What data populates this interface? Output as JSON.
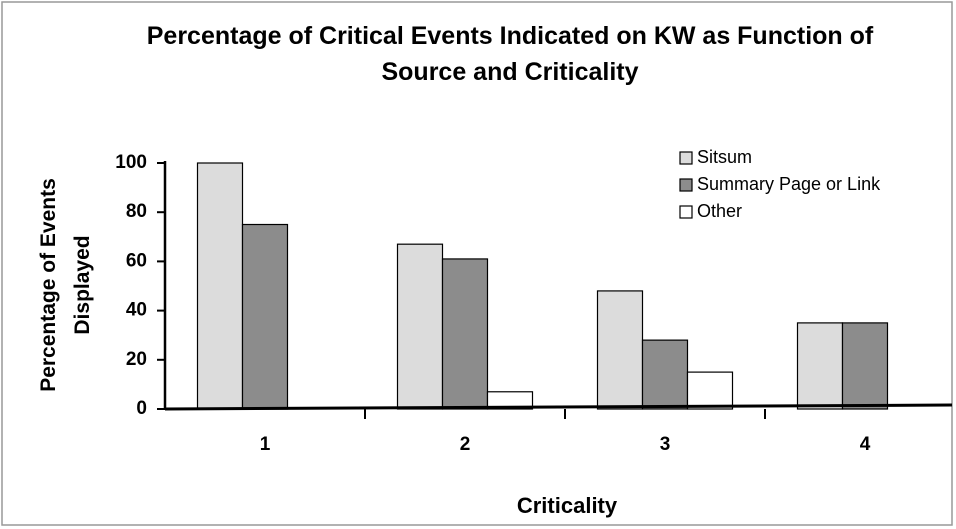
{
  "chart_data": {
    "type": "bar",
    "title": "Percentage of Critical Events Indicated on KW as Function of Source and Criticality",
    "y_label": "Percentage of Events Displayed",
    "x_label": "Criticality",
    "categories": [
      "1",
      "2",
      "3",
      "4"
    ],
    "series": [
      {
        "name": "Sitsum",
        "color": "#dcdcdc",
        "values": [
          100,
          67,
          48,
          35
        ]
      },
      {
        "name": "Summary Page or Link",
        "color": "#8c8c8c",
        "values": [
          75,
          61,
          28,
          35
        ]
      },
      {
        "name": "Other",
        "color": "#ffffff",
        "values": [
          0,
          7,
          15,
          0
        ]
      }
    ],
    "ylim": [
      0,
      100
    ],
    "yticks": [
      0,
      20,
      40,
      60,
      80,
      100
    ],
    "legend": "upper right"
  }
}
